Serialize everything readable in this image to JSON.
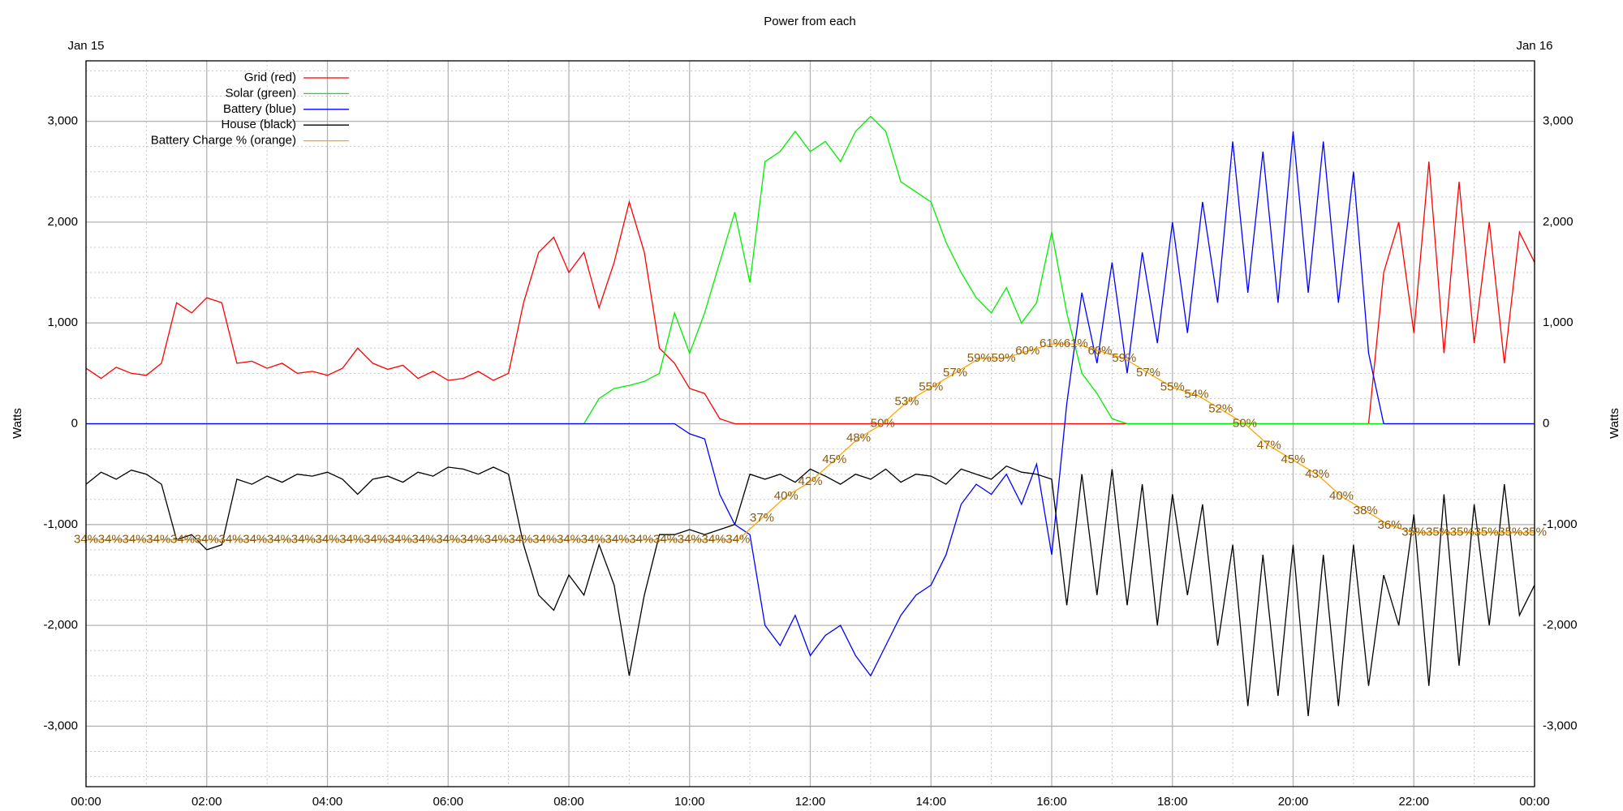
{
  "chart_data": {
    "type": "line",
    "title": "Power from each",
    "ylabel": "Watts",
    "y2label": "Watts",
    "xlim": [
      0,
      24
    ],
    "ylim": [
      -3600,
      3600
    ],
    "y3lim": [
      0,
      100
    ],
    "xticks": [
      {
        "value": 0,
        "label": "00:00"
      },
      {
        "value": 2,
        "label": "02:00"
      },
      {
        "value": 4,
        "label": "04:00"
      },
      {
        "value": 6,
        "label": "06:00"
      },
      {
        "value": 8,
        "label": "08:00"
      },
      {
        "value": 10,
        "label": "10:00"
      },
      {
        "value": 12,
        "label": "12:00"
      },
      {
        "value": 14,
        "label": "14:00"
      },
      {
        "value": 16,
        "label": "16:00"
      },
      {
        "value": 18,
        "label": "18:00"
      },
      {
        "value": 20,
        "label": "20:00"
      },
      {
        "value": 22,
        "label": "22:00"
      },
      {
        "value": 24,
        "label": "00:00"
      }
    ],
    "x2ticks": [
      {
        "value": 0,
        "label": "Jan 15"
      },
      {
        "value": 24,
        "label": "Jan 16"
      }
    ],
    "xminorticks": [
      1,
      3,
      5,
      7,
      9,
      11,
      13,
      15,
      17,
      19,
      21,
      23
    ],
    "yticks": [
      {
        "value": -3000,
        "label": "-3,000"
      },
      {
        "value": -2000,
        "label": "-2,000"
      },
      {
        "value": -1000,
        "label": "-1,000"
      },
      0,
      {
        "value": 1000,
        "label": "1,000"
      },
      {
        "value": 2000,
        "label": "2,000"
      },
      {
        "value": 3000,
        "label": "3,000"
      }
    ],
    "yminorticks": [
      -3500,
      -3250,
      -2750,
      -2500,
      -2250,
      -1750,
      -1500,
      -1250,
      -750,
      -500,
      -250,
      250,
      500,
      750,
      1250,
      1500,
      1750,
      2250,
      2500,
      2750,
      3250,
      3500
    ],
    "grid": true,
    "legend": "top-left",
    "x": [
      0,
      0.25,
      0.5,
      0.75,
      1,
      1.25,
      1.5,
      1.75,
      2,
      2.25,
      2.5,
      2.75,
      3,
      3.25,
      3.5,
      3.75,
      4,
      4.25,
      4.5,
      4.75,
      5,
      5.25,
      5.5,
      5.75,
      6,
      6.25,
      6.5,
      6.75,
      7,
      7.25,
      7.5,
      7.75,
      8,
      8.25,
      8.5,
      8.75,
      9,
      9.25,
      9.5,
      9.75,
      10,
      10.25,
      10.5,
      10.75,
      11,
      11.25,
      11.5,
      11.75,
      12,
      12.25,
      12.5,
      12.75,
      13,
      13.25,
      13.5,
      13.75,
      14,
      14.25,
      14.5,
      14.75,
      15,
      15.25,
      15.5,
      15.75,
      16,
      16.25,
      16.5,
      16.75,
      17,
      17.25,
      17.5,
      17.75,
      18,
      18.25,
      18.5,
      18.75,
      19,
      19.25,
      19.5,
      19.75,
      20,
      20.25,
      20.5,
      20.75,
      21,
      21.25,
      21.5,
      21.75,
      22,
      22.25,
      22.5,
      22.75,
      23,
      23.25,
      23.5,
      23.75,
      24
    ],
    "series": [
      {
        "name": "Grid (red)",
        "color": "#ff0000",
        "values": [
          550,
          450,
          560,
          500,
          480,
          600,
          1200,
          1100,
          1250,
          1200,
          600,
          620,
          550,
          600,
          500,
          520,
          480,
          550,
          750,
          600,
          540,
          580,
          450,
          520,
          430,
          450,
          520,
          430,
          500,
          1200,
          1700,
          1850,
          1500,
          1700,
          1150,
          1600,
          2200,
          1700,
          750,
          600,
          350,
          300,
          50,
          0,
          0,
          0,
          0,
          0,
          0,
          0,
          0,
          0,
          0,
          0,
          0,
          0,
          0,
          0,
          0,
          0,
          0,
          0,
          0,
          0,
          0,
          0,
          0,
          0,
          0,
          0,
          0,
          0,
          0,
          0,
          0,
          0,
          0,
          0,
          0,
          0,
          0,
          0,
          0,
          0,
          0,
          0,
          1500,
          2000,
          900,
          2600,
          700,
          2400,
          800,
          2000,
          600,
          1900,
          1600
        ]
      },
      {
        "name": "Solar (green)",
        "color": "#00ee00",
        "values": [
          0,
          0,
          0,
          0,
          0,
          0,
          0,
          0,
          0,
          0,
          0,
          0,
          0,
          0,
          0,
          0,
          0,
          0,
          0,
          0,
          0,
          0,
          0,
          0,
          0,
          0,
          0,
          0,
          0,
          0,
          0,
          0,
          0,
          0,
          250,
          350,
          380,
          420,
          500,
          1100,
          700,
          1100,
          1600,
          2100,
          1400,
          2600,
          2700,
          2900,
          2700,
          2800,
          2600,
          2900,
          3050,
          2900,
          2400,
          2300,
          2200,
          1800,
          1500,
          1250,
          1100,
          1350,
          1000,
          1200,
          1900,
          1100,
          500,
          300,
          50,
          0,
          0,
          0,
          0,
          0,
          0,
          0,
          0,
          0,
          0,
          0,
          0,
          0,
          0,
          0,
          0,
          0,
          0,
          0,
          0,
          0,
          0,
          0,
          0,
          0,
          0,
          0,
          0
        ]
      },
      {
        "name": "Battery (blue)",
        "color": "#0000ff",
        "values": [
          0,
          0,
          0,
          0,
          0,
          0,
          0,
          0,
          0,
          0,
          0,
          0,
          0,
          0,
          0,
          0,
          0,
          0,
          0,
          0,
          0,
          0,
          0,
          0,
          0,
          0,
          0,
          0,
          0,
          0,
          0,
          0,
          0,
          0,
          0,
          0,
          0,
          0,
          0,
          0,
          -100,
          -150,
          -700,
          -1000,
          -1100,
          -2000,
          -2200,
          -1900,
          -2300,
          -2100,
          -2000,
          -2300,
          -2500,
          -2200,
          -1900,
          -1700,
          -1600,
          -1300,
          -800,
          -600,
          -700,
          -500,
          -800,
          -400,
          -1300,
          200,
          1300,
          600,
          1600,
          500,
          1700,
          800,
          2000,
          900,
          2200,
          1200,
          2800,
          1300,
          2700,
          1200,
          2900,
          1300,
          2800,
          1200,
          2500,
          700,
          0,
          0,
          0,
          0,
          0,
          0,
          0,
          0,
          0,
          0,
          0
        ]
      },
      {
        "name": "House (black)",
        "color": "#000000",
        "values": [
          -600,
          -480,
          -550,
          -460,
          -500,
          -600,
          -1150,
          -1100,
          -1250,
          -1200,
          -550,
          -600,
          -520,
          -580,
          -500,
          -520,
          -480,
          -550,
          -700,
          -550,
          -520,
          -580,
          -480,
          -520,
          -430,
          -450,
          -500,
          -430,
          -500,
          -1200,
          -1700,
          -1850,
          -1500,
          -1700,
          -1200,
          -1600,
          -2500,
          -1700,
          -1100,
          -1100,
          -1050,
          -1100,
          -1050,
          -1000,
          -500,
          -550,
          -500,
          -580,
          -450,
          -520,
          -600,
          -500,
          -550,
          -450,
          -580,
          -500,
          -520,
          -600,
          -450,
          -500,
          -550,
          -420,
          -480,
          -500,
          -550,
          -1800,
          -500,
          -1700,
          -450,
          -1800,
          -600,
          -2000,
          -700,
          -1700,
          -800,
          -2200,
          -1200,
          -2800,
          -1300,
          -2700,
          -1200,
          -2900,
          -1300,
          -2800,
          -1200,
          -2600,
          -1500,
          -2000,
          -900,
          -2600,
          -700,
          -2400,
          -800,
          -2000,
          -600,
          -1900,
          -1600
        ]
      },
      {
        "name": "Battery Charge % (orange)",
        "color": "#ffa500",
        "axis": "y3",
        "x": [
          0,
          0.4,
          0.8,
          1.2,
          1.6,
          2,
          2.4,
          2.8,
          3.2,
          3.6,
          4,
          4.4,
          4.8,
          5.2,
          5.6,
          6,
          6.4,
          6.8,
          7.2,
          7.6,
          8,
          8.4,
          8.8,
          9.2,
          9.6,
          10,
          10.4,
          10.8,
          11.2,
          11.6,
          12,
          12.4,
          12.8,
          13.2,
          13.6,
          14,
          14.4,
          14.8,
          15.2,
          15.6,
          16,
          16.4,
          16.8,
          17.2,
          17.6,
          18,
          18.4,
          18.8,
          19.2,
          19.6,
          20,
          20.4,
          20.8,
          21.2,
          21.6,
          22,
          22.4,
          22.8,
          23.2,
          23.6,
          24
        ],
        "values": [
          34,
          34,
          34,
          34,
          34,
          34,
          34,
          34,
          34,
          34,
          34,
          34,
          34,
          34,
          34,
          34,
          34,
          34,
          34,
          34,
          34,
          34,
          34,
          34,
          34,
          34,
          34,
          34,
          37,
          40,
          42,
          45,
          48,
          50,
          53,
          55,
          57,
          59,
          59,
          60,
          61,
          61,
          60,
          59,
          57,
          55,
          54,
          52,
          50,
          47,
          45,
          43,
          40,
          38,
          36,
          35,
          35,
          35,
          35,
          35,
          35
        ],
        "value_labels": [
          "34%",
          "34%",
          "34%",
          "34%",
          "34%",
          "34%",
          "34%",
          "34%",
          "34%",
          "34%",
          "34%",
          "34%",
          "34%",
          "34%",
          "34%",
          "34%",
          "34%",
          "34%",
          "34%",
          "34%",
          "34%",
          "34%",
          "34%",
          "34%",
          "34%",
          "34%",
          "34%",
          "34%",
          "37%",
          "40%",
          "42%",
          "45%",
          "48%",
          "50%",
          "53%",
          "55%",
          "57%",
          "59%",
          "59%",
          "60%",
          "61%",
          "61%",
          "60%",
          "59%",
          "57%",
          "55%",
          "54%",
          "52%",
          "50%",
          "47%",
          "45%",
          "43%",
          "40%",
          "38%",
          "36%",
          "35%",
          "35%",
          "35%",
          "35%",
          "35%",
          "35%"
        ]
      }
    ]
  }
}
